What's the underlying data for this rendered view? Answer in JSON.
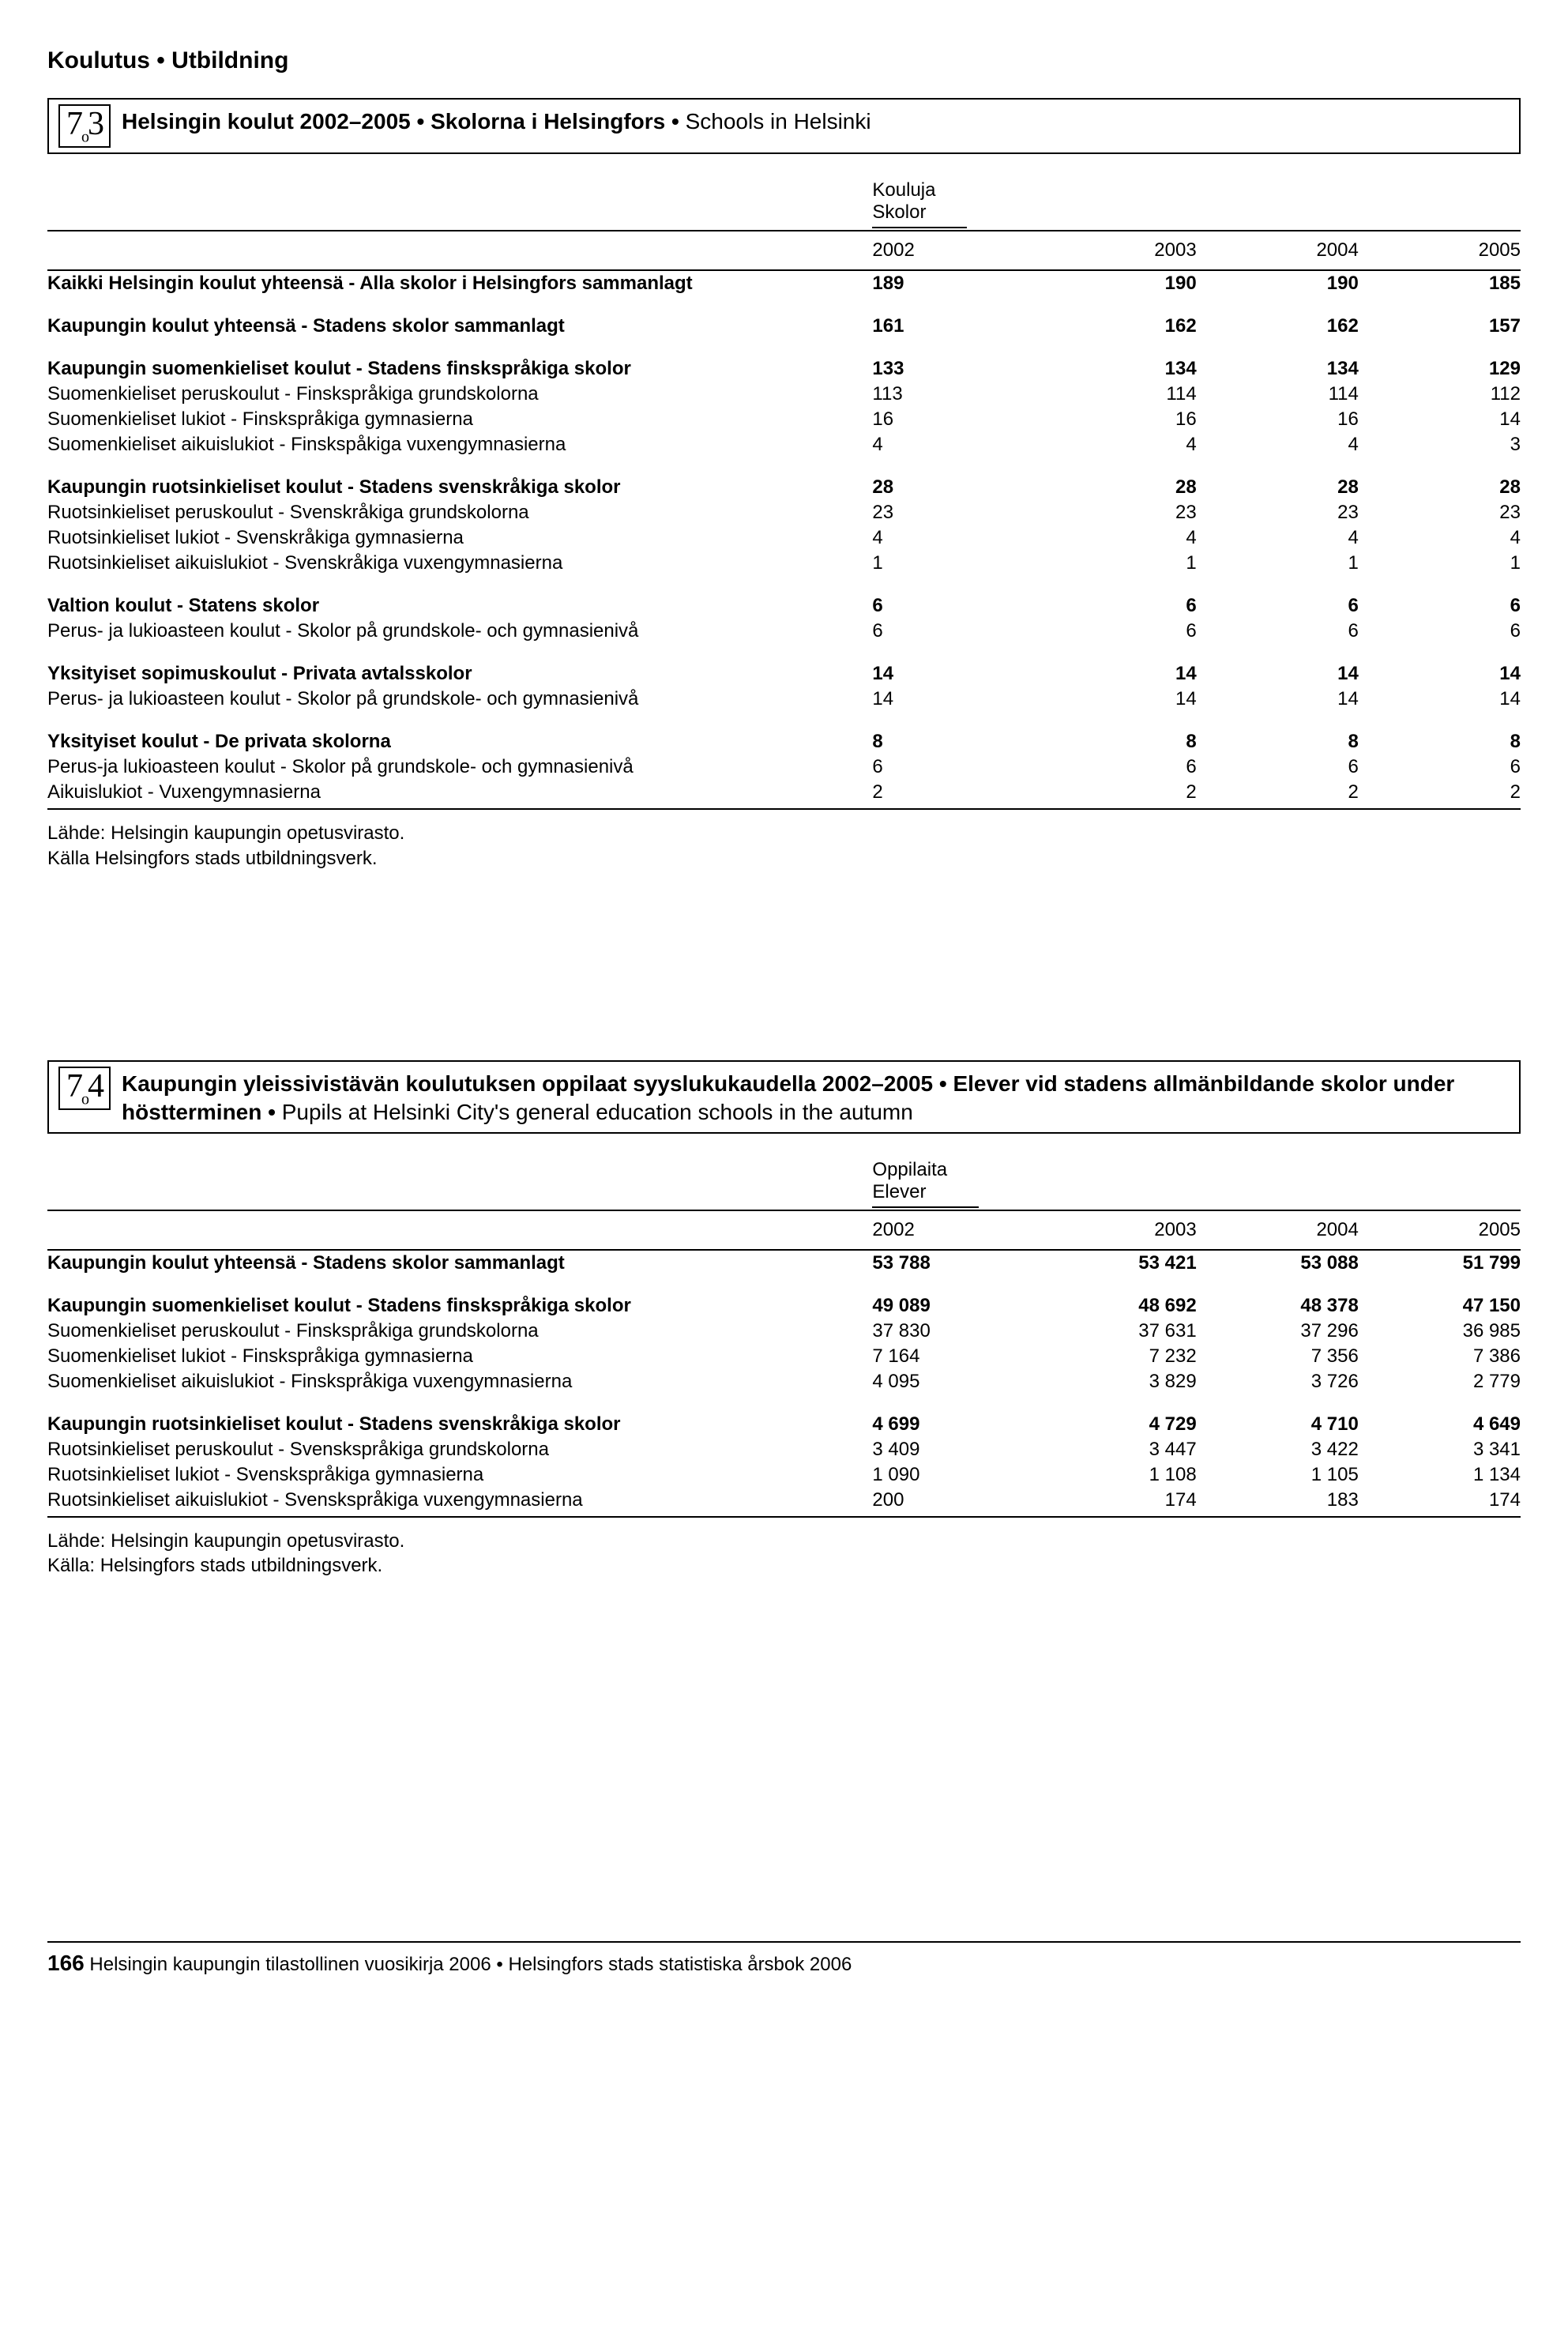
{
  "page_header": "Koulutus • Utbildning",
  "section_73": {
    "number_main": "7",
    "number_sub": "3",
    "title_bold": "Helsingin koulut 2002–2005 • Skolorna i Helsingfors • ",
    "title_plain": "Schools in Helsinki",
    "col_group_line1": "Kouluja",
    "col_group_line2": "Skolor",
    "years": [
      "2002",
      "2003",
      "2004",
      "2005"
    ],
    "rows": [
      {
        "bold": true,
        "label": "Kaikki Helsingin koulut yhteensä - Alla skolor i Helsingfors sammanlagt",
        "v": [
          "189",
          "190",
          "190",
          "185"
        ]
      },
      {
        "spacer": true
      },
      {
        "bold": true,
        "label": "Kaupungin koulut yhteensä - Stadens skolor sammanlagt",
        "v": [
          "161",
          "162",
          "162",
          "157"
        ]
      },
      {
        "spacer": true
      },
      {
        "bold": true,
        "label": "Kaupungin suomenkieliset koulut - Stadens finskspråkiga skolor",
        "v": [
          "133",
          "134",
          "134",
          "129"
        ]
      },
      {
        "bold": false,
        "label": "Suomenkieliset peruskoulut - Finskspråkiga grundskolorna",
        "v": [
          "113",
          "114",
          "114",
          "112"
        ]
      },
      {
        "bold": false,
        "label": "Suomenkieliset lukiot - Finskspråkiga gymnasierna",
        "v": [
          "16",
          "16",
          "16",
          "14"
        ]
      },
      {
        "bold": false,
        "label": "Suomenkieliset aikuislukiot - Finskspåkiga vuxengymnasierna",
        "v": [
          "4",
          "4",
          "4",
          "3"
        ]
      },
      {
        "spacer": true
      },
      {
        "bold": true,
        "label": "Kaupungin ruotsinkieliset koulut - Stadens svenskråkiga skolor",
        "v": [
          "28",
          "28",
          "28",
          "28"
        ]
      },
      {
        "bold": false,
        "label": "Ruotsinkieliset peruskoulut - Svenskråkiga grundskolorna",
        "v": [
          "23",
          "23",
          "23",
          "23"
        ]
      },
      {
        "bold": false,
        "label": "Ruotsinkieliset lukiot - Svenskråkiga gymnasierna",
        "v": [
          "4",
          "4",
          "4",
          "4"
        ]
      },
      {
        "bold": false,
        "label": "Ruotsinkieliset aikuislukiot - Svenskråkiga vuxengymnasierna",
        "v": [
          "1",
          "1",
          "1",
          "1"
        ]
      },
      {
        "spacer": true
      },
      {
        "bold": true,
        "label": "Valtion koulut - Statens skolor",
        "v": [
          "6",
          "6",
          "6",
          "6"
        ]
      },
      {
        "bold": false,
        "label": "Perus- ja lukioasteen koulut - Skolor på grundskole- och gymnasienivå",
        "v": [
          "6",
          "6",
          "6",
          "6"
        ]
      },
      {
        "spacer": true
      },
      {
        "bold": true,
        "label": "Yksityiset sopimuskoulut - Privata avtalsskolor",
        "v": [
          "14",
          "14",
          "14",
          "14"
        ]
      },
      {
        "bold": false,
        "label": "Perus- ja lukioasteen koulut - Skolor på grundskole- och gymnasienivå",
        "v": [
          "14",
          "14",
          "14",
          "14"
        ]
      },
      {
        "spacer": true
      },
      {
        "bold": true,
        "label": "Yksityiset koulut - De privata skolorna",
        "v": [
          "8",
          "8",
          "8",
          "8"
        ]
      },
      {
        "bold": false,
        "label": "Perus-ja lukioasteen koulut - Skolor på grundskole- och gymnasienivå",
        "v": [
          "6",
          "6",
          "6",
          "6"
        ]
      },
      {
        "bold": false,
        "label": "Aikuislukiot - Vuxengymnasierna",
        "v": [
          "2",
          "2",
          "2",
          "2"
        ]
      }
    ],
    "source1": "Lähde: Helsingin kaupungin opetusvirasto.",
    "source2": "Källa Helsingfors stads utbildningsverk."
  },
  "section_74": {
    "number_main": "7",
    "number_sub": "4",
    "title_bold": "Kaupungin yleissivistävän koulutuksen oppilaat syyslukukaudella 2002–2005 • Elever vid stadens allmänbildande skolor under höstterminen • ",
    "title_plain": " Pupils at Helsinki City's general education schools in the autumn",
    "col_group_line1": "Oppilaita",
    "col_group_line2": "Elever",
    "years": [
      "2002",
      "2003",
      "2004",
      "2005"
    ],
    "rows": [
      {
        "bold": true,
        "label": "Kaupungin koulut yhteensä - Stadens skolor sammanlagt",
        "v": [
          "53 788",
          "53 421",
          "53 088",
          "51 799"
        ]
      },
      {
        "spacer": true
      },
      {
        "bold": true,
        "label": "Kaupungin suomenkieliset koulut - Stadens finskspråkiga skolor",
        "v": [
          "49 089",
          "48 692",
          "48 378",
          "47 150"
        ]
      },
      {
        "bold": false,
        "label": "Suomenkieliset peruskoulut - Finskspråkiga grundskolorna",
        "v": [
          "37 830",
          "37 631",
          "37 296",
          "36 985"
        ]
      },
      {
        "bold": false,
        "label": "Suomenkieliset lukiot - Finskspråkiga gymnasierna",
        "v": [
          "7 164",
          "7 232",
          "7 356",
          "7 386"
        ]
      },
      {
        "bold": false,
        "label": "Suomenkieliset aikuislukiot - Finskspråkiga vuxengymnasierna",
        "v": [
          "4 095",
          "3 829",
          "3 726",
          "2 779"
        ]
      },
      {
        "spacer": true
      },
      {
        "bold": true,
        "label": "Kaupungin ruotsinkieliset koulut - Stadens svenskråkiga skolor",
        "v": [
          "4 699",
          "4 729",
          "4 710",
          "4 649"
        ]
      },
      {
        "bold": false,
        "label": "Ruotsinkieliset peruskoulut - Svenskspråkiga grundskolorna",
        "v": [
          "3 409",
          "3 447",
          "3 422",
          "3 341"
        ]
      },
      {
        "bold": false,
        "label": "Ruotsinkieliset lukiot - Svenskspråkiga gymnasierna",
        "v": [
          "1 090",
          "1 108",
          "1 105",
          "1 134"
        ]
      },
      {
        "bold": false,
        "label": "Ruotsinkieliset aikuislukiot - Svenskspråkiga vuxengymnasierna",
        "v": [
          "200",
          "174",
          "183",
          "174"
        ]
      }
    ],
    "source1": "Lähde: Helsingin kaupungin opetusvirasto.",
    "source2": "Källa: Helsingfors stads utbildningsverk."
  },
  "footer": {
    "page_number": "166",
    "text": " Helsingin kaupungin tilastollinen vuosikirja 2006 • Helsingfors stads statistiska årsbok 2006"
  }
}
